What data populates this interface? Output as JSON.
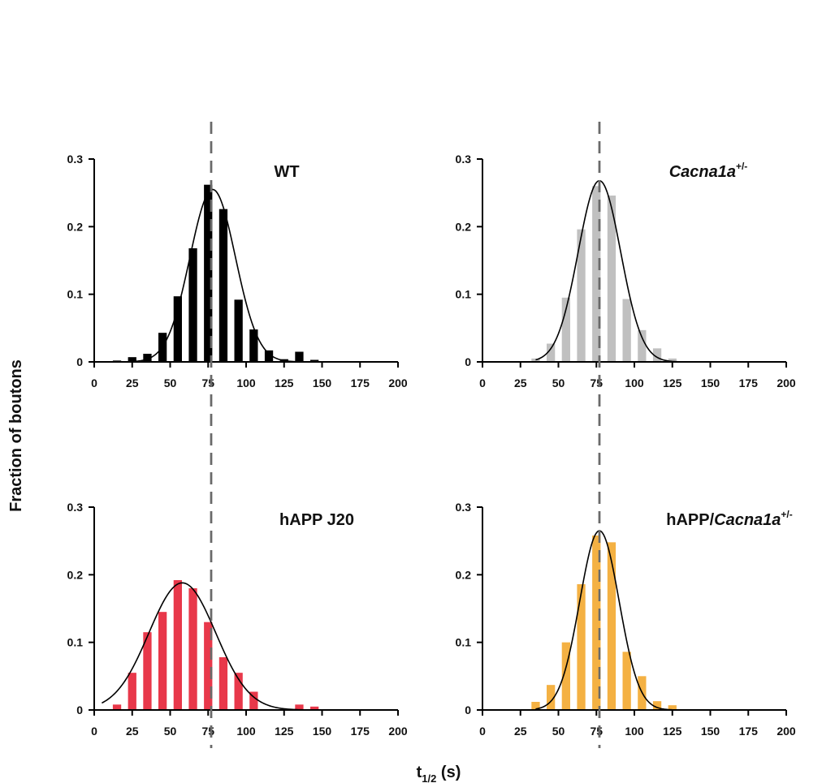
{
  "figure": {
    "ylabel": "Fraction of boutons",
    "xlabel_main": "t",
    "xlabel_sub": "1/2",
    "xlabel_unit": " (s)"
  },
  "chart_data": [
    {
      "type": "bar",
      "title_plain": "WT",
      "title_italic": "",
      "title_sup": "",
      "color": "#000000",
      "x": [
        15,
        25,
        35,
        45,
        55,
        65,
        75,
        85,
        95,
        105,
        115,
        125,
        135,
        145
      ],
      "values": [
        0.002,
        0.007,
        0.012,
        0.043,
        0.097,
        0.168,
        0.262,
        0.226,
        0.092,
        0.048,
        0.017,
        0.004,
        0.015,
        0.003
      ],
      "fit": {
        "mean": 78,
        "sd": 15,
        "amp": 0.255,
        "xmin": 10,
        "xmax": 150
      },
      "vline": 77,
      "xlim": [
        0,
        200
      ],
      "ylim": [
        0,
        0.3
      ],
      "xticks": [
        "0",
        "25",
        "50",
        "75",
        "100",
        "125",
        "150",
        "175",
        "200"
      ],
      "yticks": [
        "0",
        "0.1",
        "0.2",
        "0.3"
      ]
    },
    {
      "type": "bar",
      "title_plain": "",
      "title_italic": "Cacna1a",
      "title_sup": "+/-",
      "color": "#c0c0c0",
      "x": [
        35,
        45,
        55,
        65,
        75,
        85,
        95,
        105,
        115,
        125
      ],
      "values": [
        0.005,
        0.027,
        0.095,
        0.196,
        0.26,
        0.246,
        0.093,
        0.047,
        0.02,
        0.005
      ],
      "fit": {
        "mean": 77,
        "sd": 14,
        "amp": 0.268,
        "xmin": 35,
        "xmax": 130
      },
      "vline": 77,
      "xlim": [
        0,
        200
      ],
      "ylim": [
        0,
        0.3
      ],
      "xticks": [
        "0",
        "25",
        "50",
        "75",
        "100",
        "125",
        "150",
        "175",
        "200"
      ],
      "yticks": [
        "0",
        "0.1",
        "0.2",
        "0.3"
      ]
    },
    {
      "type": "bar",
      "title_plain": "hAPP J20",
      "title_italic": "",
      "title_sup": "",
      "color": "#e8384a",
      "x": [
        15,
        25,
        35,
        45,
        55,
        65,
        75,
        85,
        95,
        105,
        135,
        145
      ],
      "values": [
        0.008,
        0.055,
        0.115,
        0.145,
        0.192,
        0.18,
        0.13,
        0.078,
        0.055,
        0.027,
        0.008,
        0.005
      ],
      "fit": {
        "mean": 58,
        "sd": 22,
        "amp": 0.188,
        "xmin": 5,
        "xmax": 150
      },
      "vline": 77,
      "xlim": [
        0,
        200
      ],
      "ylim": [
        0,
        0.3
      ],
      "xticks": [
        "0",
        "25",
        "50",
        "75",
        "100",
        "125",
        "150",
        "175",
        "200"
      ],
      "yticks": [
        "0",
        "0.1",
        "0.2",
        "0.3"
      ]
    },
    {
      "type": "bar",
      "title_plain": "hAPP/",
      "title_italic": "Cacna1a",
      "title_sup": "+/-",
      "color": "#f4b143",
      "x": [
        35,
        45,
        55,
        65,
        75,
        85,
        95,
        105,
        115,
        125
      ],
      "values": [
        0.012,
        0.037,
        0.1,
        0.186,
        0.258,
        0.248,
        0.086,
        0.05,
        0.013,
        0.007
      ],
      "fit": {
        "mean": 77,
        "sd": 13,
        "amp": 0.265,
        "xmin": 35,
        "xmax": 130
      },
      "vline": 77,
      "xlim": [
        0,
        200
      ],
      "ylim": [
        0,
        0.3
      ],
      "xticks": [
        "0",
        "25",
        "50",
        "75",
        "100",
        "125",
        "150",
        "175",
        "200"
      ],
      "yticks": [
        "0",
        "0.1",
        "0.2",
        "0.3"
      ]
    }
  ]
}
